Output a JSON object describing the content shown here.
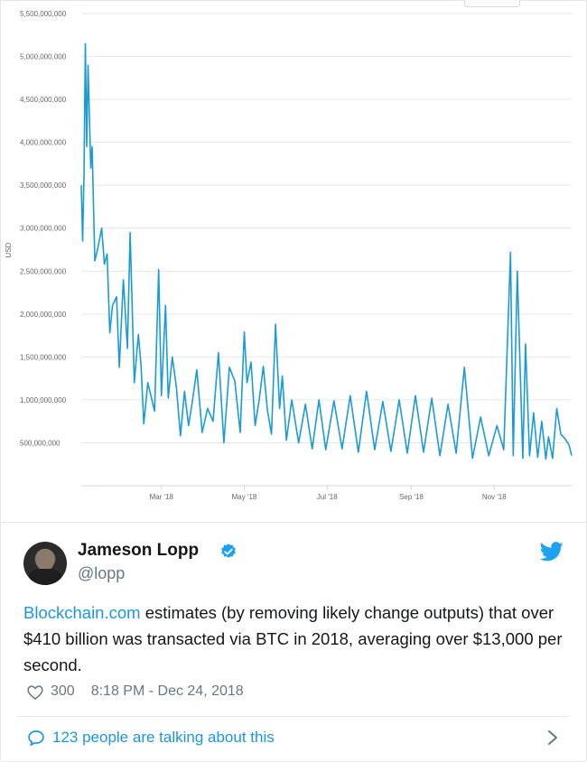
{
  "chart_data": {
    "type": "line",
    "title": "",
    "xlabel": "",
    "ylabel": "USD",
    "ylim": [
      0,
      5500000000
    ],
    "grid": true,
    "y_ticks": [
      "5,500,000,000",
      "5,000,000,000",
      "4,500,000,000",
      "4,000,000,000",
      "3,500,000,000",
      "3,000,000,000",
      "2,500,000,000",
      "2,000,000,000",
      "1,500,000,000",
      "1,000,000,000",
      "500,000,000"
    ],
    "y_tick_values": [
      5500000000,
      5000000000,
      4500000000,
      4000000000,
      3500000000,
      3000000000,
      2500000000,
      2000000000,
      1500000000,
      1000000000,
      500000000
    ],
    "x_ticks": [
      {
        "label": "Mar '18",
        "x": "2018-03-01"
      },
      {
        "label": "May '18",
        "x": "2018-05-01"
      },
      {
        "label": "Jul '18",
        "x": "2018-07-01"
      },
      {
        "label": "Sep '18",
        "x": "2018-09-01"
      },
      {
        "label": "Nov '18",
        "x": "2018-11-01"
      }
    ],
    "xlim": [
      "2018-01-01",
      "2018-12-28"
    ],
    "series": [
      {
        "color": "#1a9bd7",
        "x": [
          "2018-01-01",
          "2018-01-02",
          "2018-01-03",
          "2018-01-04",
          "2018-01-05",
          "2018-01-06",
          "2018-01-08",
          "2018-01-09",
          "2018-01-11",
          "2018-01-13",
          "2018-01-16",
          "2018-01-18",
          "2018-01-20",
          "2018-01-22",
          "2018-01-24",
          "2018-01-27",
          "2018-01-29",
          "2018-02-01",
          "2018-02-04",
          "2018-02-06",
          "2018-02-09",
          "2018-02-12",
          "2018-02-14",
          "2018-02-16",
          "2018-02-19",
          "2018-02-22",
          "2018-02-24",
          "2018-02-27",
          "2018-03-01",
          "2018-03-04",
          "2018-03-06",
          "2018-03-09",
          "2018-03-12",
          "2018-03-15",
          "2018-03-18",
          "2018-03-21",
          "2018-03-24",
          "2018-03-27",
          "2018-03-31",
          "2018-04-04",
          "2018-04-08",
          "2018-04-12",
          "2018-04-16",
          "2018-04-20",
          "2018-04-24",
          "2018-04-28",
          "2018-05-01",
          "2018-05-03",
          "2018-05-06",
          "2018-05-09",
          "2018-05-12",
          "2018-05-15",
          "2018-05-18",
          "2018-05-21",
          "2018-05-24",
          "2018-05-27",
          "2018-05-29",
          "2018-06-01",
          "2018-06-05",
          "2018-06-10",
          "2018-06-15",
          "2018-06-20",
          "2018-06-25",
          "2018-06-30",
          "2018-07-06",
          "2018-07-12",
          "2018-07-18",
          "2018-07-24",
          "2018-07-30",
          "2018-08-05",
          "2018-08-11",
          "2018-08-17",
          "2018-08-23",
          "2018-08-29",
          "2018-09-04",
          "2018-09-10",
          "2018-09-16",
          "2018-09-22",
          "2018-09-28",
          "2018-10-04",
          "2018-10-10",
          "2018-10-16",
          "2018-10-22",
          "2018-10-28",
          "2018-11-03",
          "2018-11-08",
          "2018-11-13",
          "2018-11-15",
          "2018-11-18",
          "2018-11-22",
          "2018-11-24",
          "2018-11-27",
          "2018-11-30",
          "2018-12-03",
          "2018-12-06",
          "2018-12-09",
          "2018-12-11",
          "2018-12-14",
          "2018-12-17",
          "2018-12-20",
          "2018-12-23",
          "2018-12-26",
          "2018-12-28"
        ],
        "y": [
          3500000000,
          2850000000,
          3600000000,
          5150000000,
          3950000000,
          4900000000,
          3700000000,
          3950000000,
          2620000000,
          2750000000,
          3000000000,
          2580000000,
          2700000000,
          1780000000,
          2100000000,
          2200000000,
          1380000000,
          2400000000,
          1600000000,
          2950000000,
          1200000000,
          1760000000,
          1400000000,
          720000000,
          1200000000,
          1000000000,
          870000000,
          2520000000,
          1050000000,
          2100000000,
          1020000000,
          1500000000,
          1150000000,
          580000000,
          1100000000,
          700000000,
          1000000000,
          1350000000,
          620000000,
          900000000,
          750000000,
          1550000000,
          500000000,
          1380000000,
          1220000000,
          620000000,
          1790000000,
          1200000000,
          1440000000,
          700000000,
          1000000000,
          1390000000,
          880000000,
          600000000,
          1880000000,
          900000000,
          1280000000,
          530000000,
          1000000000,
          500000000,
          950000000,
          430000000,
          1000000000,
          420000000,
          990000000,
          430000000,
          1050000000,
          390000000,
          1100000000,
          420000000,
          980000000,
          400000000,
          1000000000,
          380000000,
          1050000000,
          390000000,
          1020000000,
          350000000,
          950000000,
          380000000,
          1380000000,
          320000000,
          800000000,
          350000000,
          700000000,
          420000000,
          2720000000,
          350000000,
          2500000000,
          320000000,
          1650000000,
          350000000,
          850000000,
          330000000,
          750000000,
          310000000,
          570000000,
          320000000,
          900000000,
          600000000,
          550000000,
          480000000,
          350000000
        ]
      }
    ]
  },
  "tweet": {
    "author_name": "Jameson Lopp",
    "handle": "@lopp",
    "text_link": "Blockchain.com",
    "text_rest": " estimates (by removing likely change outputs) that over $410 billion was transacted via BTC in 2018, averaging over $13,000 per second.",
    "likes": "300",
    "timestamp": "8:18 PM - Dec 24, 2018",
    "talking": "123 people are talking about this",
    "icons": {
      "verified": "verified-badge-icon",
      "bird": "twitter-bird-icon",
      "heart": "heart-icon",
      "comment": "comment-bubble-icon",
      "chevron": "chevron-right-icon"
    },
    "colors": {
      "accent": "#1b95e0",
      "muted": "#657786",
      "line": "#1a9bd7"
    }
  }
}
